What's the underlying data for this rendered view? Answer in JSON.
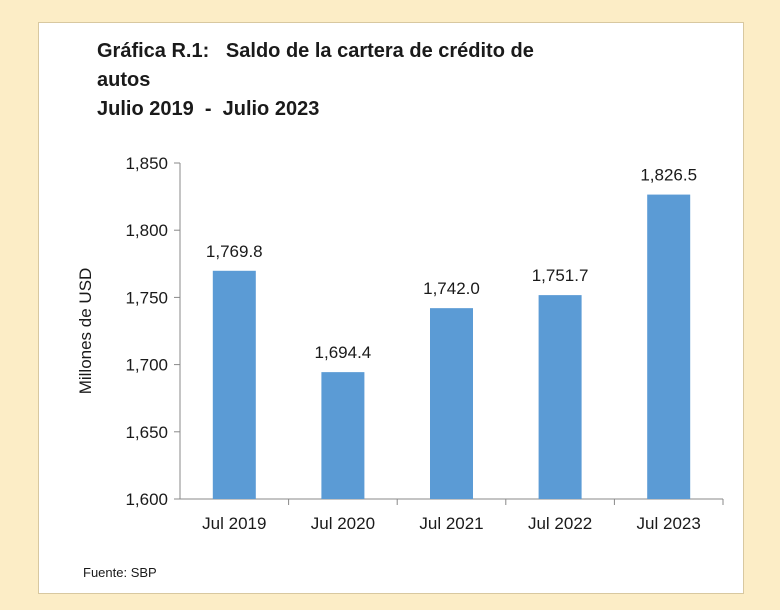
{
  "title": {
    "line1": "Gráfica R.1:   Saldo de la cartera de crédito de",
    "line2": "autos",
    "line3": "Julio 2019  -  Julio 2023"
  },
  "source": "Fuente: SBP",
  "colors": {
    "bar": "#5b9bd5",
    "axis": "#888888",
    "background": "#fcedc6"
  },
  "chart_data": {
    "type": "bar",
    "title": "Gráfica R.1: Saldo de la cartera de crédito de autos Julio 2019 - Julio 2023",
    "categories": [
      "Jul 2019",
      "Jul 2020",
      "Jul 2021",
      "Jul 2022",
      "Jul 2023"
    ],
    "values": [
      1769.8,
      1694.4,
      1742.0,
      1751.7,
      1826.5
    ],
    "data_labels": [
      "1,769.8",
      "1,694.4",
      "1,742.0",
      "1,751.7",
      "1,826.5"
    ],
    "xlabel": "",
    "ylabel": "Millones de USD",
    "ylim": [
      1600,
      1850
    ],
    "yticks": [
      1600,
      1650,
      1700,
      1750,
      1800,
      1850
    ],
    "ytick_labels": [
      "1,600",
      "1,650",
      "1,700",
      "1,750",
      "1,800",
      "1,850"
    ],
    "grid": false,
    "legend": "none"
  }
}
